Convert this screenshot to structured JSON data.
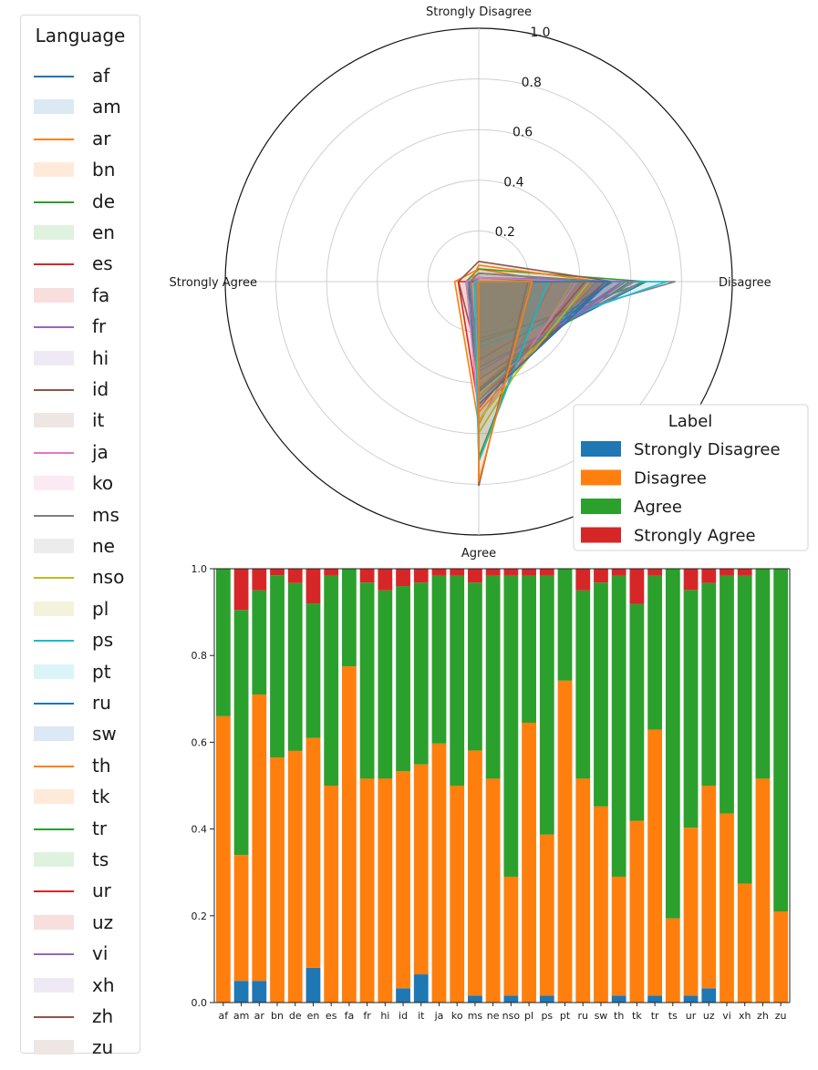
{
  "language_legend": {
    "title": "Language",
    "items": [
      {
        "code": "af",
        "color": "#1f77b4",
        "style": "line"
      },
      {
        "code": "am",
        "color": "#dce8f4",
        "style": "fill"
      },
      {
        "code": "ar",
        "color": "#ff7f0e",
        "style": "line"
      },
      {
        "code": "bn",
        "color": "#ffeada",
        "style": "fill"
      },
      {
        "code": "de",
        "color": "#2ca02c",
        "style": "line"
      },
      {
        "code": "en",
        "color": "#dff2df",
        "style": "fill"
      },
      {
        "code": "es",
        "color": "#d62728",
        "style": "line"
      },
      {
        "code": "fa",
        "color": "#f9dede",
        "style": "fill"
      },
      {
        "code": "fr",
        "color": "#9467bd",
        "style": "line"
      },
      {
        "code": "hi",
        "color": "#efe9f6",
        "style": "fill"
      },
      {
        "code": "id",
        "color": "#8c564b",
        "style": "line"
      },
      {
        "code": "it",
        "color": "#eee6e3",
        "style": "fill"
      },
      {
        "code": "ja",
        "color": "#e377c2",
        "style": "line"
      },
      {
        "code": "ko",
        "color": "#fbe9f4",
        "style": "fill"
      },
      {
        "code": "ms",
        "color": "#7f7f7f",
        "style": "line"
      },
      {
        "code": "ne",
        "color": "#ececec",
        "style": "fill"
      },
      {
        "code": "nso",
        "color": "#bcbd22",
        "style": "line"
      },
      {
        "code": "pl",
        "color": "#f3f3dd",
        "style": "fill"
      },
      {
        "code": "ps",
        "color": "#17becf",
        "style": "line"
      },
      {
        "code": "pt",
        "color": "#dbf4f7",
        "style": "fill"
      },
      {
        "code": "ru",
        "color": "#1f77b4",
        "style": "line"
      },
      {
        "code": "sw",
        "color": "#dce8f4",
        "style": "fill"
      },
      {
        "code": "th",
        "color": "#ff7f0e",
        "style": "line"
      },
      {
        "code": "tk",
        "color": "#ffeada",
        "style": "fill"
      },
      {
        "code": "tr",
        "color": "#2ca02c",
        "style": "line"
      },
      {
        "code": "ts",
        "color": "#dff2df",
        "style": "fill"
      },
      {
        "code": "ur",
        "color": "#d62728",
        "style": "line"
      },
      {
        "code": "uz",
        "color": "#f9dede",
        "style": "fill"
      },
      {
        "code": "vi",
        "color": "#9467bd",
        "style": "line"
      },
      {
        "code": "xh",
        "color": "#efe9f6",
        "style": "fill"
      },
      {
        "code": "zh",
        "color": "#8c564b",
        "style": "line"
      },
      {
        "code": "zu",
        "color": "#eee6e3",
        "style": "fill"
      }
    ]
  },
  "chart_data": [
    {
      "type": "radar",
      "axes": [
        "Strongly Disagree",
        "Disagree",
        "Agree",
        "Strongly Agree"
      ],
      "radial_ticks": [
        "0.2",
        "0.4",
        "0.6",
        "0.8",
        "1.0"
      ],
      "rlim": [
        0,
        1.0
      ],
      "note": "one filled polygon per language; values equal the stacked-bar proportions below"
    },
    {
      "type": "stacked_bar",
      "title": "",
      "xlabel": "",
      "ylabel": "",
      "ylim": [
        0,
        1.0
      ],
      "y_ticks": [
        "0.0",
        "0.2",
        "0.4",
        "0.6",
        "0.8",
        "1.0"
      ],
      "legend": {
        "title": "Label",
        "position": "right, between the two charts"
      },
      "categories": [
        "af",
        "am",
        "ar",
        "bn",
        "de",
        "en",
        "es",
        "fa",
        "fr",
        "hi",
        "id",
        "it",
        "ja",
        "ko",
        "ms",
        "ne",
        "nso",
        "pl",
        "ps",
        "pt",
        "ru",
        "sw",
        "th",
        "tk",
        "tr",
        "ts",
        "ur",
        "uz",
        "vi",
        "xh",
        "zh",
        "zu"
      ],
      "series": [
        {
          "name": "Strongly Disagree",
          "color": "#1f77b4",
          "values": [
            0.0,
            0.05,
            0.05,
            0.0,
            0.0,
            0.08,
            0.0,
            0.0,
            0.0,
            0.0,
            0.033,
            0.065,
            0.0,
            0.0,
            0.016,
            0.0,
            0.016,
            0.0,
            0.016,
            0.0,
            0.0,
            0.0,
            0.016,
            0.0,
            0.016,
            0.0,
            0.016,
            0.033,
            0.0,
            0.0,
            0.0,
            0.0
          ]
        },
        {
          "name": "Disagree",
          "color": "#ff7f0e",
          "values": [
            0.66,
            0.29,
            0.66,
            0.565,
            0.58,
            0.53,
            0.5,
            0.775,
            0.516,
            0.516,
            0.5,
            0.484,
            0.597,
            0.5,
            0.565,
            0.516,
            0.274,
            0.645,
            0.371,
            0.742,
            0.516,
            0.452,
            0.274,
            0.419,
            0.613,
            0.194,
            0.387,
            0.467,
            0.436,
            0.274,
            0.516,
            0.21
          ]
        },
        {
          "name": "Agree",
          "color": "#2ca02c",
          "values": [
            0.34,
            0.565,
            0.24,
            0.42,
            0.387,
            0.31,
            0.484,
            0.225,
            0.452,
            0.434,
            0.427,
            0.419,
            0.387,
            0.484,
            0.387,
            0.468,
            0.694,
            0.339,
            0.597,
            0.258,
            0.434,
            0.516,
            0.694,
            0.5,
            0.355,
            0.806,
            0.548,
            0.467,
            0.548,
            0.71,
            0.484,
            0.79
          ]
        },
        {
          "name": "Strongly Agree",
          "color": "#d62728",
          "values": [
            0.0,
            0.095,
            0.05,
            0.015,
            0.033,
            0.08,
            0.016,
            0.0,
            0.032,
            0.05,
            0.04,
            0.032,
            0.016,
            0.016,
            0.032,
            0.016,
            0.016,
            0.016,
            0.016,
            0.0,
            0.05,
            0.032,
            0.016,
            0.081,
            0.016,
            0.0,
            0.049,
            0.033,
            0.016,
            0.016,
            0.0,
            0.0
          ]
        }
      ]
    }
  ]
}
